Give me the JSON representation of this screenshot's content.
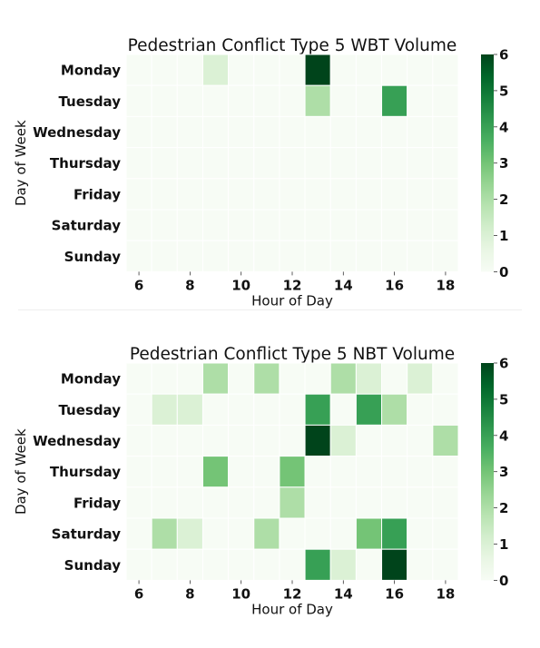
{
  "chart_data": [
    {
      "type": "heatmap",
      "title": "Pedestrian Conflict Type 5 WBT Volume",
      "xlabel": "Hour of Day",
      "ylabel": "Day of Week",
      "x": [
        6,
        7,
        8,
        9,
        10,
        11,
        12,
        13,
        14,
        15,
        16,
        17,
        18
      ],
      "x_tick_labels": [
        "6",
        "8",
        "10",
        "12",
        "14",
        "16",
        "18"
      ],
      "y": [
        "Monday",
        "Tuesday",
        "Wednesday",
        "Thursday",
        "Friday",
        "Saturday",
        "Sunday"
      ],
      "values": [
        [
          0,
          0,
          0,
          1,
          0,
          0,
          0,
          6,
          0,
          0,
          0,
          0,
          0
        ],
        [
          0,
          0,
          0,
          0,
          0,
          0,
          0,
          2,
          0,
          0,
          4,
          0,
          0
        ],
        [
          0,
          0,
          0,
          0,
          0,
          0,
          0,
          0,
          0,
          0,
          0,
          0,
          0
        ],
        [
          0,
          0,
          0,
          0,
          0,
          0,
          0,
          0,
          0,
          0,
          0,
          0,
          0
        ],
        [
          0,
          0,
          0,
          0,
          0,
          0,
          0,
          0,
          0,
          0,
          0,
          0,
          0
        ],
        [
          0,
          0,
          0,
          0,
          0,
          0,
          0,
          0,
          0,
          0,
          0,
          0,
          0
        ],
        [
          0,
          0,
          0,
          0,
          0,
          0,
          0,
          0,
          0,
          0,
          0,
          0,
          0
        ]
      ],
      "colorbar": {
        "range": [
          0,
          6
        ],
        "ticks": [
          "0",
          "1",
          "2",
          "3",
          "4",
          "5",
          "6"
        ],
        "colormap": "Greens"
      }
    },
    {
      "type": "heatmap",
      "title": "Pedestrian Conflict Type 5 NBT Volume",
      "xlabel": "Hour of Day",
      "ylabel": "Day of Week",
      "x": [
        6,
        7,
        8,
        9,
        10,
        11,
        12,
        13,
        14,
        15,
        16,
        17,
        18
      ],
      "x_tick_labels": [
        "6",
        "8",
        "10",
        "12",
        "14",
        "16",
        "18"
      ],
      "y": [
        "Monday",
        "Tuesday",
        "Wednesday",
        "Thursday",
        "Friday",
        "Saturday",
        "Sunday"
      ],
      "values": [
        [
          0,
          0,
          0,
          2,
          0,
          2,
          0,
          0,
          2,
          1,
          0,
          1,
          0
        ],
        [
          0,
          1,
          1,
          0,
          0,
          0,
          0,
          4,
          0,
          4,
          2,
          0,
          0
        ],
        [
          0,
          0,
          0,
          0,
          0,
          0,
          0,
          6,
          1,
          0,
          0,
          0,
          2
        ],
        [
          0,
          0,
          0,
          3,
          0,
          0,
          3,
          0,
          0,
          0,
          0,
          0,
          0
        ],
        [
          0,
          0,
          0,
          0,
          0,
          0,
          2,
          0,
          0,
          0,
          0,
          0,
          0
        ],
        [
          0,
          2,
          1,
          0,
          0,
          2,
          0,
          0,
          0,
          3,
          4,
          0,
          0
        ],
        [
          0,
          0,
          0,
          0,
          0,
          0,
          0,
          4,
          1,
          0,
          6,
          0,
          0
        ]
      ],
      "colorbar": {
        "range": [
          0,
          6
        ],
        "ticks": [
          "0",
          "1",
          "2",
          "3",
          "4",
          "5",
          "6"
        ],
        "colormap": "Greens"
      }
    }
  ]
}
